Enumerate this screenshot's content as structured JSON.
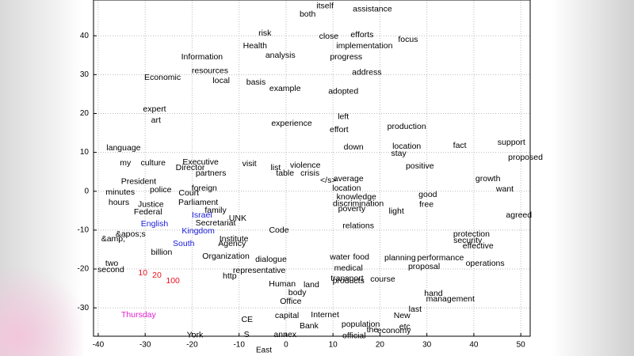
{
  "chart_data": {
    "type": "scatter",
    "xlabel": "East",
    "xlim": [
      -41,
      52
    ],
    "ylim": [
      -37.3,
      49.2
    ],
    "xticks": [
      -40,
      -30,
      -20,
      -10,
      0,
      10,
      20,
      30,
      40,
      50
    ],
    "yticks": [
      -30,
      -20,
      -10,
      0,
      10,
      20,
      30,
      40
    ],
    "grid": true,
    "series": [
      {
        "color": "#000000",
        "labels": [
          "itself",
          "assistance",
          "both",
          "risk",
          "close",
          "efforts",
          "focus",
          "Health",
          "implementation",
          "analysis",
          "progress",
          "Information",
          "address",
          "basis",
          "example",
          "local",
          "Economic",
          "resources",
          "expert",
          "adopted",
          "art",
          "left",
          "effort",
          "experience",
          "production",
          "stay",
          "location",
          "fact",
          "support",
          "proposed",
          "language",
          "my",
          "culture",
          "Director",
          "Executive",
          "partners",
          "visit",
          "list",
          "violence",
          "table",
          "crisis",
          "down",
          "positive",
          "President",
          "minutes",
          "hours",
          "police",
          "Court",
          "Parliament",
          "foreign",
          "average",
          "</s>",
          "location",
          "knowledge",
          "discrimination",
          "poverty",
          "good",
          "want",
          "growth",
          "agreed",
          "Justice",
          "Federal",
          "family",
          "UNK",
          "Secretariat",
          "Code",
          "relations",
          "light",
          "free",
          "protection",
          "security",
          "effective",
          "Institute",
          "Agency",
          "&amp;",
          "&apos;s",
          "Organization",
          "dialogue",
          "water",
          "food",
          "planning",
          "performance",
          "operations",
          "billion",
          "second",
          "two",
          "http",
          "representative",
          "medical",
          "transport",
          "Human",
          "land",
          "products",
          "course",
          "proposal",
          "body",
          "hand",
          "management",
          "Office",
          "last",
          "capital",
          "Internet",
          "New",
          "Bank",
          "population",
          "etc",
          "the",
          "economy",
          "CE",
          "York",
          "official",
          "S",
          "annex"
        ],
        "x": [
          8.3,
          18.4,
          4.6,
          -4.5,
          9.1,
          16.2,
          26,
          -6.6,
          16.7,
          -1.2,
          12.8,
          -17.9,
          17.2,
          -6.4,
          -0.2,
          -13.8,
          -26.3,
          -16.2,
          -28,
          12.2,
          -27.7,
          12.2,
          11.3,
          1.2,
          25.7,
          24,
          25.7,
          37,
          48,
          51,
          -34.6,
          -34.2,
          -28.3,
          -20.4,
          -18.2,
          -16,
          -7.8,
          -2.2,
          4.1,
          -0.2,
          5.1,
          14.4,
          28.5,
          -31.4,
          -35.3,
          -35.6,
          -26.7,
          -20.7,
          -18.7,
          -17.4,
          13.3,
          9,
          12.9,
          15,
          15.4,
          14,
          30.2,
          46.6,
          43,
          49.6,
          -28.8,
          -29.4,
          -15,
          -10.3,
          -15,
          -1.5,
          15.4,
          23.5,
          29.9,
          39.5,
          38.7,
          40.9,
          -11.1,
          -11.5,
          -36.8,
          -33.1,
          -12.8,
          -3.2,
          11.5,
          16,
          24.3,
          32.9,
          42.4,
          -26.5,
          -37.3,
          -37.1,
          -12,
          -5.7,
          13.3,
          13,
          -0.8,
          5.4,
          13.3,
          20.6,
          29.4,
          2.4,
          31.4,
          35,
          1,
          27.5,
          0.2,
          8.3,
          24.7,
          4.9,
          15.9,
          25.3,
          18.4,
          23,
          -8.3,
          -19.4,
          14.5,
          -8.4,
          -0.2
        ],
        "y": [
          47.6,
          46.8,
          45.5,
          40.6,
          39.8,
          40.2,
          39,
          37.4,
          37.4,
          34.9,
          34.5,
          34.5,
          30.5,
          28,
          26.4,
          28.4,
          29.2,
          30.9,
          21.1,
          25.6,
          18.2,
          19.1,
          15.8,
          17.4,
          16.6,
          9.7,
          11.5,
          11.7,
          12.5,
          8.7,
          11.1,
          7.2,
          7.2,
          6,
          7.4,
          4.6,
          7,
          6,
          6.6,
          4.6,
          4.6,
          11.3,
          6.4,
          2.4,
          -0.3,
          -2.9,
          0.3,
          -0.5,
          -2.9,
          0.7,
          3.2,
          2.8,
          0.7,
          -1.5,
          -3.3,
          -4.6,
          -0.9,
          0.5,
          3.2,
          -6.2,
          -3.5,
          -5.4,
          -5,
          -7,
          -8.2,
          -10.1,
          -9,
          -5.2,
          -3.5,
          -11.1,
          -12.7,
          -14.1,
          -12.3,
          -13.5,
          -12.3,
          -11.1,
          -16.8,
          -17.6,
          -17,
          -17,
          -17.2,
          -17.2,
          -18.6,
          -15.8,
          -20.2,
          -18.6,
          -21.9,
          -20.5,
          -19.8,
          -22.5,
          -23.9,
          -24.1,
          -23.1,
          -22.7,
          -19.4,
          -26.2,
          -26.4,
          -27.8,
          -28.4,
          -30.4,
          -32.1,
          -31.9,
          -32.1,
          -34.7,
          -34.3,
          -34.9,
          -35.7,
          -35.9,
          -33.1,
          -37,
          -37.2,
          -36.9,
          -36.9
        ]
      },
      {
        "color": "#1a1adb",
        "labels": [
          "Israel",
          "English",
          "Kingdom",
          "South"
        ],
        "x": [
          -17.9,
          -28,
          -18.7,
          -21.8
        ],
        "y": [
          -6.2,
          -8.4,
          -10.3,
          -13.5
        ]
      },
      {
        "color": "#e8141e",
        "labels": [
          "100",
          "20",
          "10"
        ],
        "x": [
          -24.1,
          -27.5,
          -30.5
        ],
        "y": [
          -23.1,
          -21.7,
          -21.1
        ]
      },
      {
        "color": "#e020d0",
        "labels": [
          "Thursday"
        ],
        "x": [
          -31.4
        ],
        "y": [
          -31.9
        ]
      }
    ]
  }
}
